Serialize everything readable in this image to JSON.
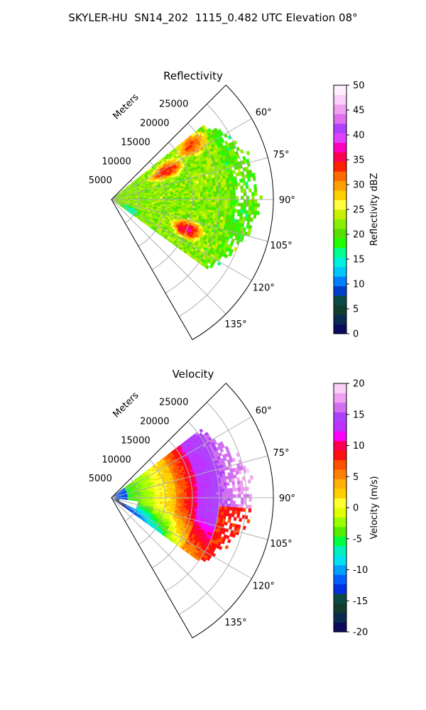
{
  "title": "SKYLER-HU  SN14_202  1115_0.482 UTC Elevation 08°",
  "colors": {
    "refl_scale": [
      "#0b0b5e",
      "#0a2a50",
      "#103d30",
      "#0c4a45",
      "#0040c8",
      "#0080ff",
      "#00c8ff",
      "#00f0e0",
      "#00ff90",
      "#22ff00",
      "#55e000",
      "#88f000",
      "#c8f000",
      "#ffff40",
      "#ffd000",
      "#ffa000",
      "#ff6a00",
      "#ff2000",
      "#ff0050",
      "#ff00c0",
      "#e040ff",
      "#b040ff",
      "#e070f0",
      "#f0a0f0",
      "#f8d0f8",
      "#fff0ff"
    ],
    "vel_scale": [
      "#0b0b5e",
      "#0a2a50",
      "#103d30",
      "#0c4a45",
      "#0030e0",
      "#0060ff",
      "#00a0ff",
      "#00e0f0",
      "#00f0c0",
      "#00ff40",
      "#55ee00",
      "#99ff00",
      "#ddff00",
      "#ffff30",
      "#ffd000",
      "#ffb000",
      "#ff8000",
      "#ff5000",
      "#ff1010",
      "#ff0050",
      "#ff00ff",
      "#c030ff",
      "#b040ff",
      "#d070f0",
      "#f0a0f0",
      "#f8d0f8"
    ]
  },
  "chart_data": [
    {
      "type": "heatmap",
      "subtype": "polar-sector (PPI)",
      "title": "Reflectivity",
      "range_label": "Meters",
      "range_ticks": [
        "5000",
        "10000",
        "15000",
        "20000",
        "25000"
      ],
      "range_lim": [
        0,
        30000
      ],
      "azimuth_lim": [
        45,
        150
      ],
      "azimuth_ticks": [
        "60°",
        "75°",
        "90°",
        "105°",
        "120°",
        "135°"
      ],
      "azimuth_tick_values": [
        60,
        75,
        90,
        105,
        120,
        135
      ],
      "grid": true,
      "colorbar": {
        "label": "Reflectivity dBZ",
        "range": [
          0,
          50
        ],
        "ticks": [
          "0",
          "5",
          "10",
          "15",
          "20",
          "25",
          "30",
          "35",
          "40",
          "45",
          "50"
        ],
        "position": "right"
      },
      "regions": [
        {
          "desc": "background echo",
          "value": 24,
          "r": [
            0,
            26000
          ],
          "az": [
            50,
            125
          ]
        },
        {
          "desc": "outer light echo",
          "value": 20,
          "r": [
            22000,
            27500
          ],
          "az": [
            58,
            128
          ]
        },
        {
          "desc": "northern core",
          "value": 34,
          "r": [
            8000,
            15000
          ],
          "az": [
            55,
            70
          ]
        },
        {
          "desc": "inner strong cell",
          "value": 33,
          "r": [
            15000,
            21000
          ],
          "az": [
            50,
            62
          ]
        },
        {
          "desc": "southern core",
          "value": 36,
          "r": [
            12000,
            18000
          ],
          "az": [
            105,
            118
          ]
        },
        {
          "desc": "near-radar weak echo",
          "value": 15,
          "r": [
            2000,
            6000
          ],
          "az": [
            110,
            128
          ]
        }
      ]
    },
    {
      "type": "heatmap",
      "subtype": "polar-sector (PPI)",
      "title": "Velocity",
      "range_label": "Meters",
      "range_ticks": [
        "5000",
        "10000",
        "15000",
        "20000",
        "25000"
      ],
      "range_lim": [
        0,
        30000
      ],
      "azimuth_lim": [
        45,
        150
      ],
      "azimuth_ticks": [
        "60°",
        "75°",
        "90°",
        "105°",
        "120°",
        "135°"
      ],
      "azimuth_tick_values": [
        60,
        75,
        90,
        105,
        120,
        135
      ],
      "grid": true,
      "colorbar": {
        "label": "Velocity (m/s)",
        "range": [
          -20,
          20
        ],
        "ticks": [
          "-20",
          "-15",
          "-10",
          "-5",
          "0",
          "5",
          "10",
          "15",
          "20"
        ],
        "position": "right"
      },
      "regions": [
        {
          "desc": "inbound near radar",
          "value": -12,
          "r": [
            0,
            3500
          ],
          "az": [
            55,
            125
          ]
        },
        {
          "desc": "weak inbound",
          "value": -5,
          "r": [
            3500,
            9000
          ],
          "az": [
            55,
            125
          ]
        },
        {
          "desc": "near zero",
          "value": 1,
          "r": [
            9000,
            13000
          ],
          "az": [
            55,
            125
          ]
        },
        {
          "desc": "outbound",
          "value": 9,
          "r": [
            13000,
            17000
          ],
          "az": [
            55,
            125
          ]
        },
        {
          "desc": "strong outbound",
          "value": 15,
          "r": [
            17000,
            23000
          ],
          "az": [
            55,
            100
          ]
        },
        {
          "desc": "outbound south",
          "value": 7,
          "r": [
            17000,
            24000
          ],
          "az": [
            100,
            125
          ]
        }
      ]
    }
  ]
}
